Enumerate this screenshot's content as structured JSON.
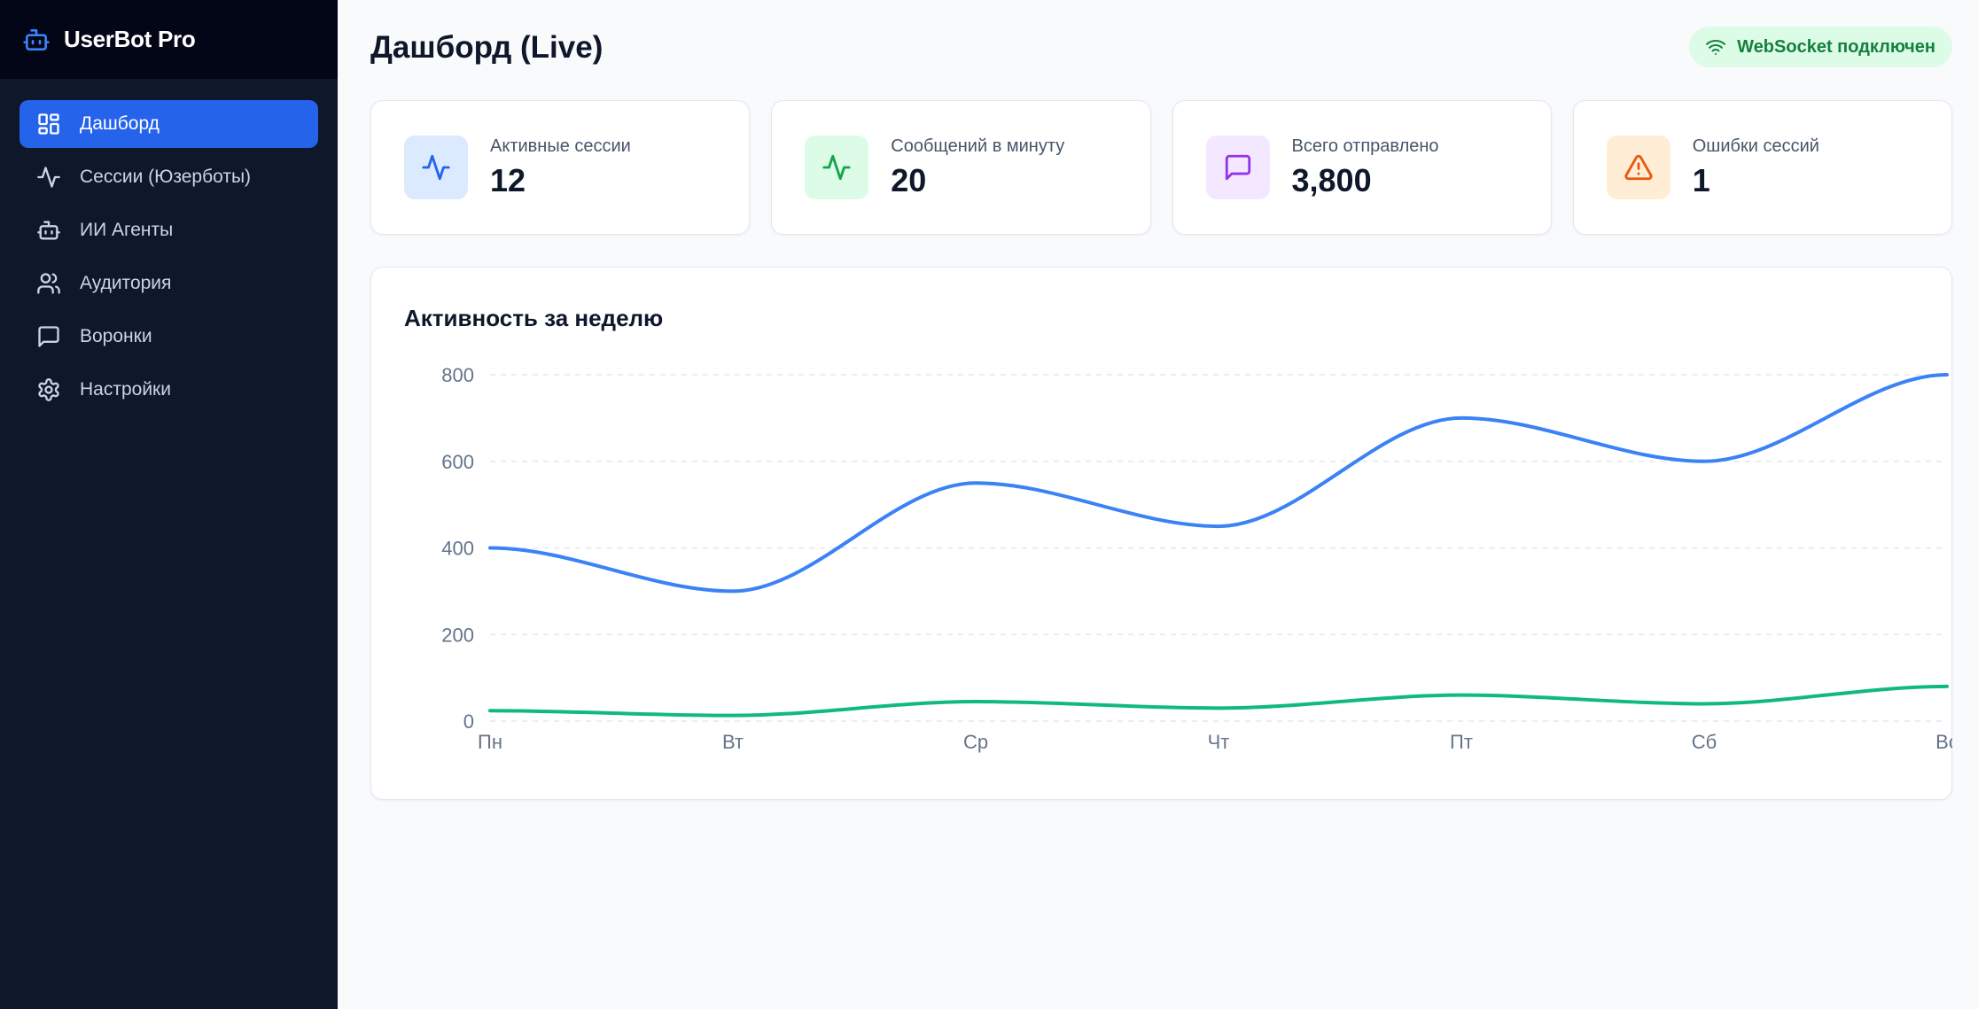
{
  "brand": {
    "name": "UserBot Pro",
    "icon": "bot-icon",
    "accent": "#3b82f6"
  },
  "sidebar": {
    "items": [
      {
        "label": "Дашборд",
        "icon": "dashboard-icon",
        "active": true
      },
      {
        "label": "Сессии (Юзерботы)",
        "icon": "activity-icon",
        "active": false
      },
      {
        "label": "ИИ Агенты",
        "icon": "bot-icon",
        "active": false
      },
      {
        "label": "Аудитория",
        "icon": "users-icon",
        "active": false
      },
      {
        "label": "Воронки",
        "icon": "message-icon",
        "active": false
      },
      {
        "label": "Настройки",
        "icon": "gear-icon",
        "active": false
      }
    ]
  },
  "header": {
    "title": "Дашборд (Live)",
    "ws_status": "WebSocket подключен",
    "ws_icon": "wifi-icon"
  },
  "stats": [
    {
      "label": "Активные сессии",
      "value": "12",
      "icon": "activity-icon",
      "bg": "#dbeafe",
      "color": "#2563eb"
    },
    {
      "label": "Сообщений в минуту",
      "value": "20",
      "icon": "activity-icon",
      "bg": "#dcfce7",
      "color": "#16a34a"
    },
    {
      "label": "Всего отправлено",
      "value": "3,800",
      "icon": "message-icon",
      "bg": "#f3e8ff",
      "color": "#9333ea"
    },
    {
      "label": "Ошибки сессий",
      "value": "1",
      "icon": "alert-triangle-icon",
      "bg": "#ffedd5",
      "color": "#ea580c"
    }
  ],
  "chart": {
    "title": "Активность за неделю"
  },
  "chart_data": {
    "type": "line",
    "categories": [
      "Пн",
      "Вт",
      "Ср",
      "Чт",
      "Пт",
      "Сб",
      "Вс"
    ],
    "series": [
      {
        "values": [
          400,
          300,
          550,
          450,
          700,
          600,
          800
        ],
        "color": "#3b82f6"
      },
      {
        "values": [
          24,
          13,
          45,
          30,
          60,
          40,
          80
        ],
        "color": "#10b981"
      }
    ],
    "ylim": [
      0,
      800
    ],
    "yticks": [
      0,
      200,
      400,
      600,
      800
    ],
    "grid": true
  }
}
